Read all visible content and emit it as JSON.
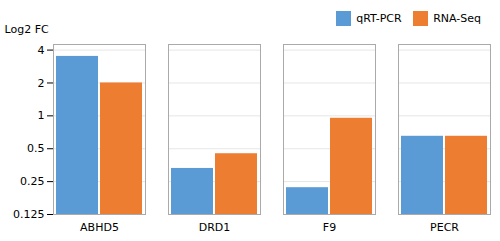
{
  "chart_data": {
    "type": "bar",
    "categories": [
      "ABHD5",
      "DRD1",
      "F9",
      "PECR"
    ],
    "series": [
      {
        "name": "qRT-PCR",
        "color": "#5B9BD5",
        "values": [
          3.5,
          0.33,
          0.22,
          0.65
        ]
      },
      {
        "name": "RNA-Seq",
        "color": "#ED7D31",
        "values": [
          2.0,
          0.45,
          0.95,
          0.65
        ]
      }
    ],
    "ylabel": "Log2 FC",
    "ylim": [
      0.125,
      4.5
    ],
    "yticks": [
      0.125,
      0.25,
      0.5,
      1,
      2,
      4
    ],
    "log": "y",
    "grid": true,
    "legend": "upper right"
  }
}
